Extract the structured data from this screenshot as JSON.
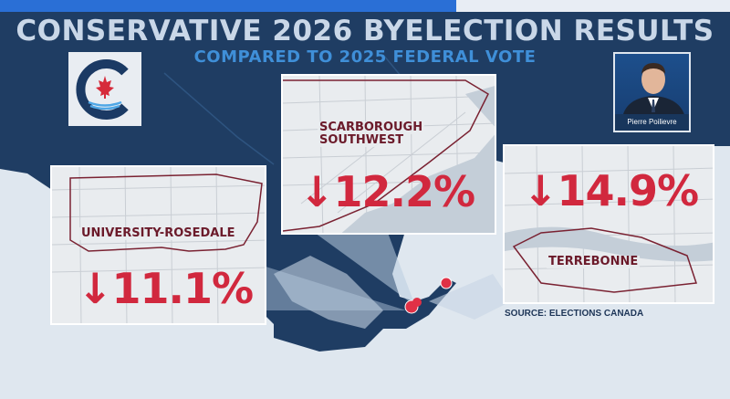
{
  "header": {
    "title": "CONSERVATIVE 2026 BYELECTION RESULTS",
    "subtitle": "COMPARED TO 2025 FEDERAL VOTE"
  },
  "portrait": {
    "caption": "Pierre Poilievre"
  },
  "cards": {
    "scarborough": {
      "name_line1": "SCARBOROUGH",
      "name_line2": "SOUTHWEST",
      "value": "↓12.2%"
    },
    "university": {
      "name": "UNIVERSITY-ROSEDALE",
      "value": "↓11.1%"
    },
    "terrebonne": {
      "name": "TERREBONNE",
      "value": "↓14.9%"
    }
  },
  "footer": {
    "source": "SOURCE: ELECTIONS CANADA"
  },
  "colors": {
    "value_red": "#d1283e",
    "name_maroon": "#6b1a2a",
    "title_light": "#c9d7e8",
    "subtitle_blue": "#3f8fd8",
    "land": "#1f3d63",
    "water": "#dfe7ef"
  }
}
